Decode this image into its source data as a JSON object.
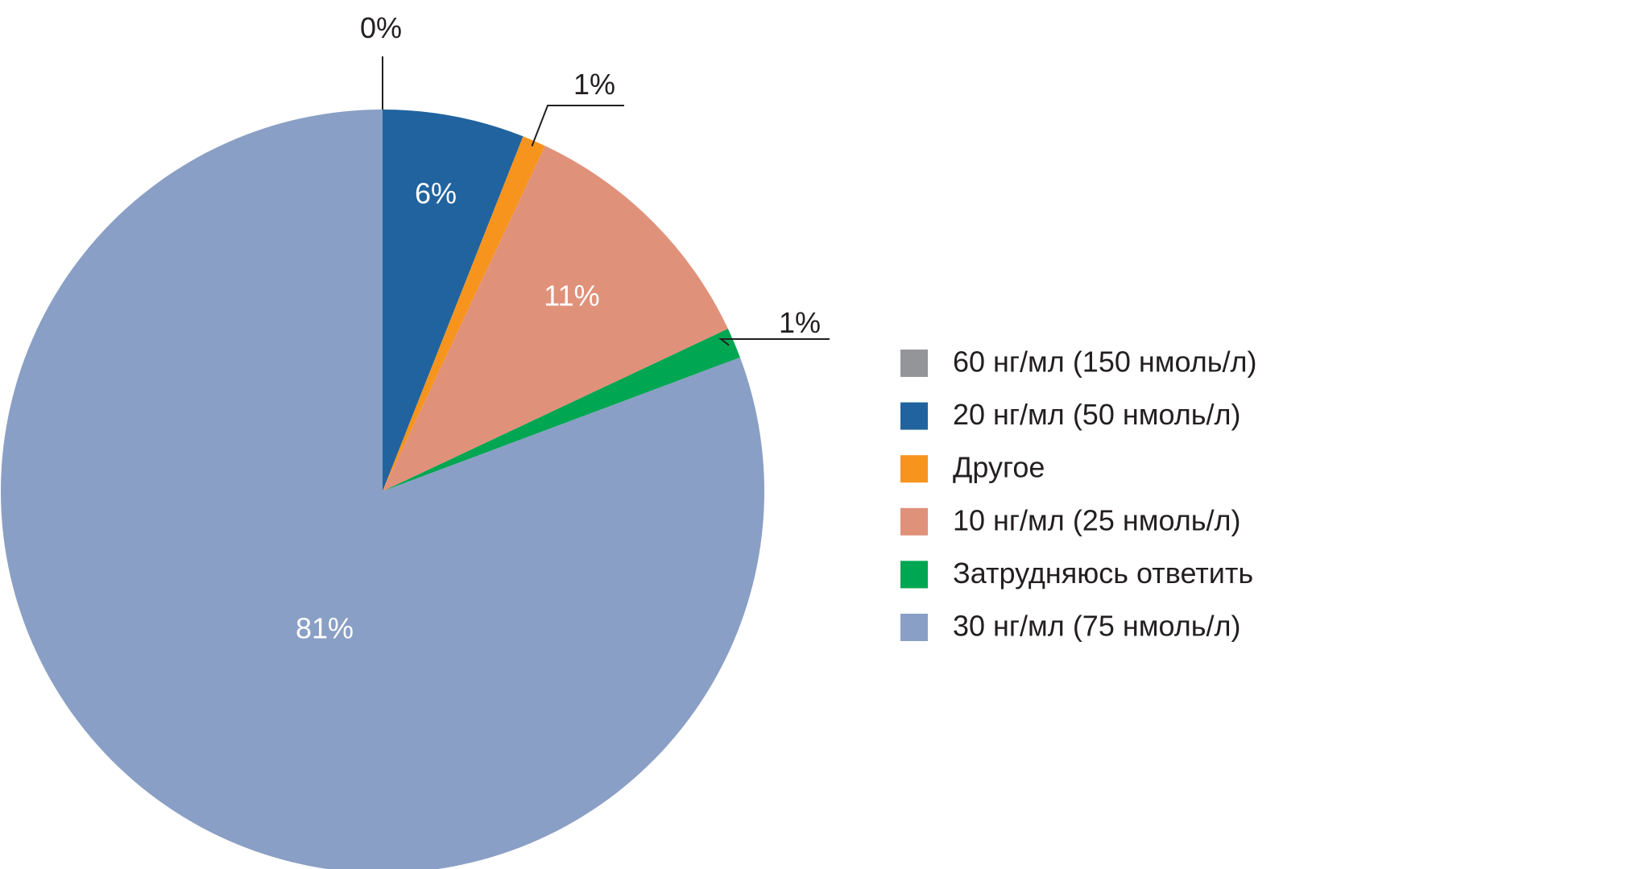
{
  "chart_data": {
    "type": "pie",
    "title": "",
    "legend_position": "right",
    "slices": [
      {
        "name": "60 нг/мл (150 нмоль/л)",
        "value": 0,
        "label": "0%",
        "color": "#939598",
        "label_placement": "outside"
      },
      {
        "name": "20 нг/мл (50 нмоль/л)",
        "value": 6,
        "label": "6%",
        "color": "#21639e",
        "label_placement": "inside",
        "label_color": "#ffffff"
      },
      {
        "name": "Другое",
        "value": 1,
        "label": "1%",
        "color": "#f7941d",
        "label_placement": "outside"
      },
      {
        "name": "10 нг/мл (25 нмоль/л)",
        "value": 11,
        "label": "11%",
        "color": "#e0917a",
        "label_placement": "inside",
        "label_color": "#ffffff"
      },
      {
        "name": "Затрудняюсь ответить",
        "value": 1.3,
        "label": "1%",
        "color": "#00a651",
        "label_placement": "outside"
      },
      {
        "name": "30 нг/мл (75 нмоль/л)",
        "value": 80.7,
        "label": "81%",
        "color": "#8a9fc5",
        "label_placement": "inside",
        "label_color": "#ffffff"
      }
    ],
    "legend": [
      "60 нг/мл (150 нмоль/л)",
      "20 нг/мл (50 нмоль/л)",
      "Другое",
      "10 нг/мл (25 нмоль/л)",
      "Затрудняюсь ответить",
      "30 нг/мл (75 нмоль/л)"
    ]
  }
}
